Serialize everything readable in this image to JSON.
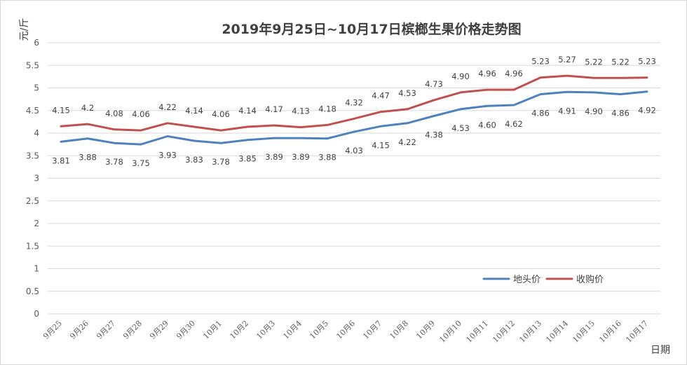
{
  "chart_data": {
    "type": "line",
    "title": "2019年9月25日~10月17日槟榔生果价格走势图",
    "ylabel": "元/斤",
    "xlabel": "日期",
    "ylim": [
      0,
      6
    ],
    "ytick_step": 0.5,
    "grid": true,
    "legend_position": "bottom-right",
    "categories": [
      "9月25",
      "9月26",
      "9月27",
      "9月28",
      "9月29",
      "9月30",
      "10月1",
      "10月2",
      "10月3",
      "10月4",
      "10月5",
      "10月6",
      "10月7",
      "10月8",
      "10月9",
      "10月10",
      "10月11",
      "10月12",
      "10月13",
      "10月14",
      "10月15",
      "10月16",
      "10月17"
    ],
    "series": [
      {
        "name": "地头价",
        "color": "#4f81bd",
        "label_position": "below",
        "values": [
          3.81,
          3.88,
          3.78,
          3.75,
          3.93,
          3.83,
          3.78,
          3.85,
          3.89,
          3.89,
          3.88,
          4.03,
          4.15,
          4.22,
          4.38,
          4.53,
          4.6,
          4.62,
          4.86,
          4.91,
          4.9,
          4.86,
          4.92
        ],
        "labels": [
          "3.81",
          "3.88",
          "3.78",
          "3.75",
          "3.93",
          "3.83",
          "3.78",
          "3.85",
          "3.89",
          "3.89",
          "3.88",
          "4.03",
          "4.15",
          "4.22",
          "4.38",
          "4.53",
          "4.60",
          "4.62",
          "4.86",
          "4.91",
          "4.90",
          "4.86",
          "4.92"
        ]
      },
      {
        "name": "收购价",
        "color": "#c0504d",
        "label_position": "above",
        "values": [
          4.15,
          4.2,
          4.08,
          4.06,
          4.22,
          4.14,
          4.06,
          4.14,
          4.17,
          4.13,
          4.18,
          4.32,
          4.47,
          4.53,
          4.73,
          4.9,
          4.96,
          4.96,
          5.23,
          5.27,
          5.22,
          5.22,
          5.23
        ],
        "labels": [
          "4.15",
          "4.2",
          "4.08",
          "4.06",
          "4.22",
          "4.14",
          "4.06",
          "4.14",
          "4.17",
          "4.13",
          "4.18",
          "4.32",
          "4.47",
          "4.53",
          "4.73",
          "4.90",
          "4.96",
          "4.96",
          "5.23",
          "5.27",
          "5.22",
          "5.22",
          "5.23"
        ]
      }
    ]
  }
}
